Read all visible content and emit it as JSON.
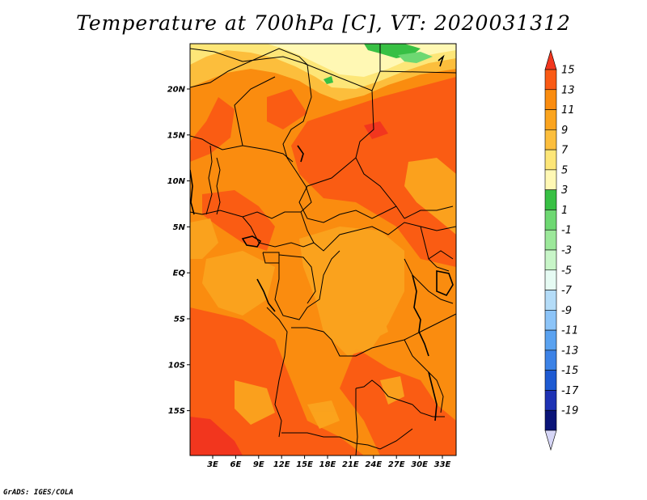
{
  "title": "Temperature at 700hPa [C], VT: 2020031312",
  "credit": "GrADS: IGES/COLA",
  "map": {
    "lat_labels": [
      "20N",
      "15N",
      "10N",
      "5N",
      "EQ",
      "5S",
      "10S",
      "15S"
    ],
    "lon_labels": [
      "3E",
      "6E",
      "9E",
      "12E",
      "15E",
      "18E",
      "21E",
      "24E",
      "27E",
      "30E",
      "33E"
    ]
  },
  "colorbar": {
    "labels": [
      "15",
      "13",
      "11",
      "9",
      "7",
      "5",
      "3",
      "1",
      "-1",
      "-3",
      "-5",
      "-7",
      "-9",
      "-11",
      "-13",
      "-15",
      "-17",
      "-19"
    ],
    "colors": [
      "#f2361e",
      "#fa5a14",
      "#fa8c0f",
      "#fba41e",
      "#fcbe3c",
      "#fde678",
      "#fff8b4",
      "#38c044",
      "#6ed872",
      "#9ce89a",
      "#c8f5c8",
      "#e6fbf3",
      "#b4dcf8",
      "#8cc4f8",
      "#5aa2f0",
      "#3c82e6",
      "#1e5ad2",
      "#1e32b4",
      "#0a1478",
      "#d6d6f6"
    ]
  }
}
